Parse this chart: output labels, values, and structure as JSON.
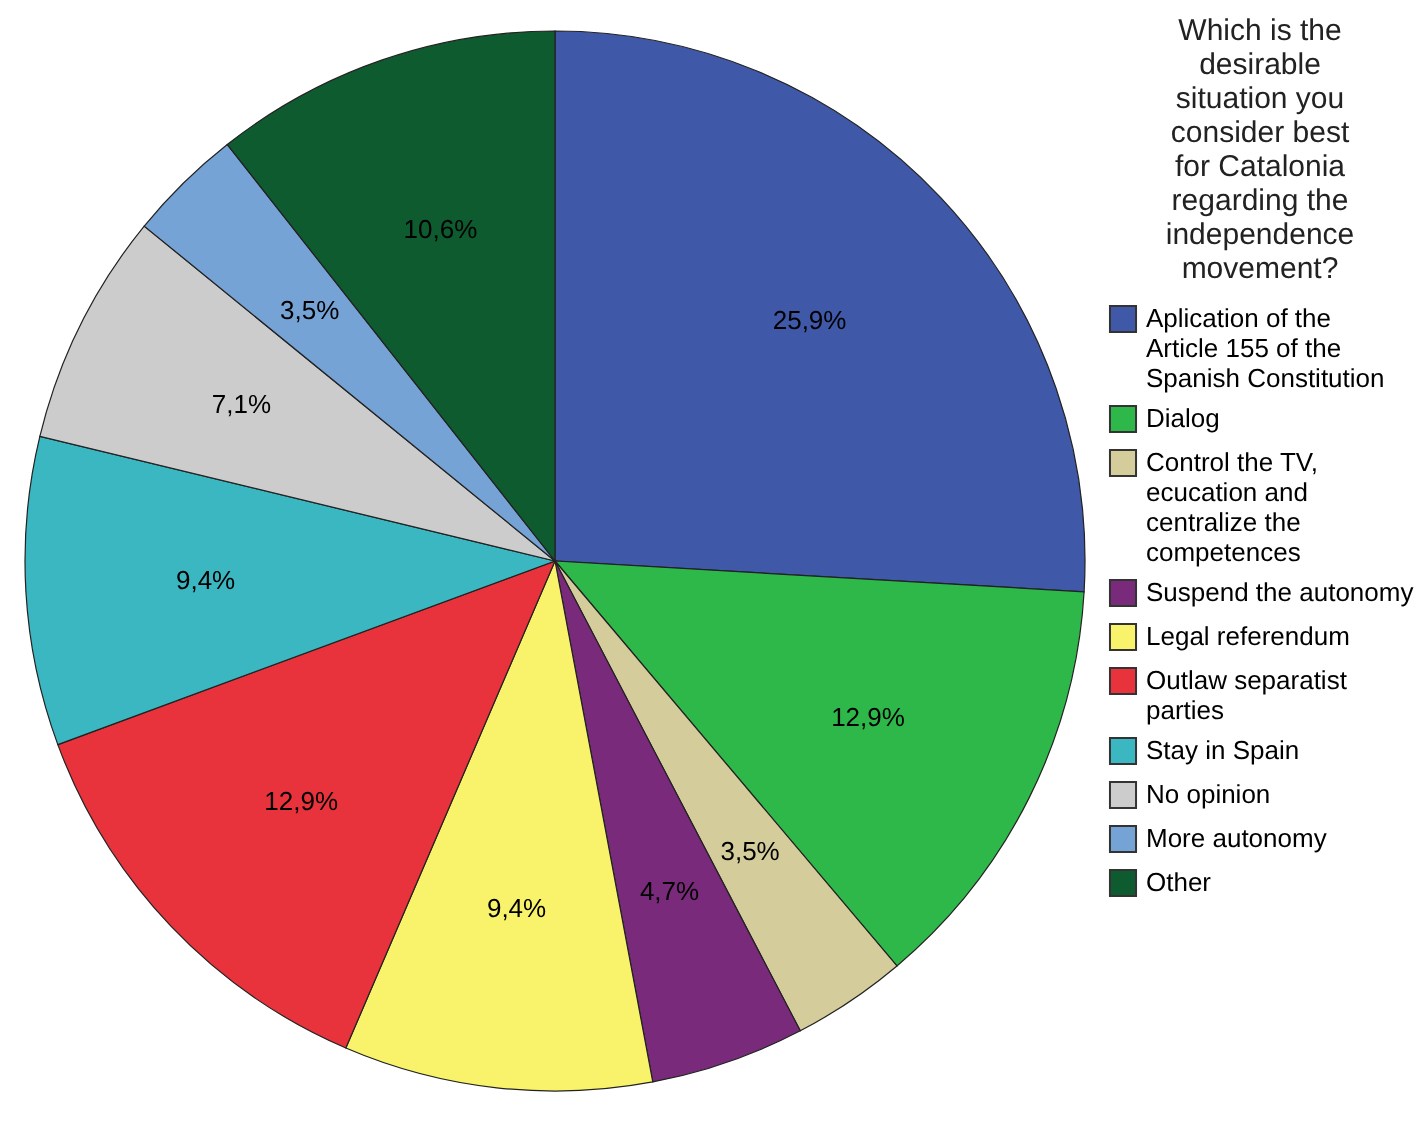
{
  "chart_data": {
    "type": "pie",
    "legend_title": "Which is the desirable situation you consider best for Catalonia regarding the independence movement?",
    "categories": [
      "Aplication of the Article 155 of the Spanish Constitution",
      "Dialog",
      "Control the TV, ecucation and centralize the competences",
      "Suspend the autonomy",
      "Legal referendum",
      "Outlaw separatist parties",
      "Stay in Spain",
      "No opinion",
      "More autonomy",
      "Other"
    ],
    "values": [
      25.9,
      12.9,
      3.5,
      4.7,
      9.4,
      12.9,
      9.4,
      7.1,
      3.5,
      10.6
    ],
    "value_labels": [
      "25,9%",
      "12,9%",
      "3,5%",
      "4,7%",
      "9,4%",
      "12,9%",
      "9,4%",
      "7,1%",
      "3,5%",
      "10,6%"
    ],
    "colors": [
      "#3f58a8",
      "#2eb84a",
      "#d4cc9a",
      "#7a2a7a",
      "#f8f36a",
      "#e8323c",
      "#3ab7c1",
      "#cccccc",
      "#76a3d6",
      "#0e5b30"
    ],
    "legend": "right"
  }
}
